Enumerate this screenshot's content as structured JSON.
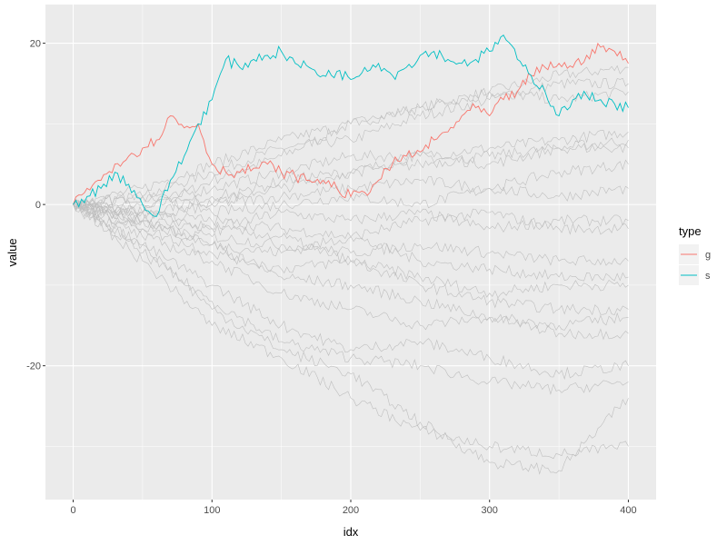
{
  "chart_data": {
    "type": "line",
    "title": "",
    "xlabel": "idx",
    "ylabel": "value",
    "xlim": [
      -20,
      420
    ],
    "ylim": [
      -36.6,
      24.8
    ],
    "x_ticks": [
      0,
      100,
      200,
      300,
      400
    ],
    "y_ticks": [
      -20,
      0,
      20
    ],
    "grid": true,
    "legend": {
      "title": "type",
      "placement": "right",
      "entries": [
        {
          "label": "g",
          "color": "#F8766D"
        },
        {
          "label": "s",
          "color": "#00BFC4"
        }
      ]
    },
    "highlight_series": [
      {
        "name": "g",
        "color": "#F8766D",
        "x_step": 10,
        "values": [
          0,
          2,
          3,
          5,
          6,
          7,
          8,
          11,
          9.5,
          10,
          5,
          4,
          4,
          4.5,
          5,
          4,
          3.5,
          3,
          3,
          2,
          1,
          1.5,
          3,
          5,
          6,
          6.5,
          8,
          9,
          11,
          12,
          11,
          13,
          14,
          16,
          17,
          17.5,
          17,
          18.5,
          19.5,
          19,
          17.5
        ]
      },
      {
        "name": "s",
        "color": "#00BFC4",
        "x_step": 10,
        "values": [
          0,
          1,
          2,
          4,
          2.5,
          0,
          -1.5,
          3,
          6,
          10,
          13,
          18,
          17,
          18,
          18.5,
          19,
          17.5,
          17,
          16,
          16.5,
          15.5,
          17,
          17.5,
          16,
          17,
          18.5,
          19,
          18,
          17.5,
          18,
          19,
          21,
          18,
          16,
          14,
          11,
          13,
          13.5,
          13,
          12.5,
          12
        ]
      }
    ],
    "background_series_color": "#BEBEBE",
    "background_series_x_step": 50,
    "background_series": [
      [
        0,
        -1,
        3,
        6,
        10,
        12,
        14,
        16,
        17
      ],
      [
        0,
        1,
        4,
        7,
        8,
        11,
        13,
        15,
        15
      ],
      [
        0,
        2,
        5,
        8,
        10,
        12,
        14,
        13,
        14
      ],
      [
        0,
        0,
        2,
        4,
        6,
        6,
        7,
        8,
        9
      ],
      [
        0,
        -1,
        1,
        2,
        4,
        6,
        5,
        7,
        8
      ],
      [
        0,
        1,
        0,
        3,
        4,
        5,
        6,
        7,
        7
      ],
      [
        0,
        -2,
        0,
        1,
        2,
        3,
        2,
        4,
        5
      ],
      [
        0,
        1,
        -1,
        0,
        1,
        0,
        2,
        1,
        2
      ],
      [
        0,
        -2,
        -3,
        -1,
        -2,
        -1,
        -3,
        -2,
        -2
      ],
      [
        0,
        -1,
        -2,
        -3,
        -4,
        -2,
        -1,
        -3,
        -3
      ],
      [
        0,
        -3,
        -4,
        -5,
        -6,
        -5,
        -6,
        -7,
        -7
      ],
      [
        0,
        -2,
        -5,
        -6,
        -4,
        -7,
        -8,
        -9,
        -9
      ],
      [
        0,
        -1,
        -3,
        -4,
        -7,
        -9,
        -11,
        -10,
        -10
      ],
      [
        0,
        -3,
        -6,
        -8,
        -7,
        -10,
        -12,
        -13,
        -13
      ],
      [
        0,
        -2,
        -5,
        -9,
        -10,
        -12,
        -14,
        -15,
        -14
      ],
      [
        0,
        -4,
        -7,
        -11,
        -13,
        -15,
        -14,
        -16,
        -16
      ],
      [
        0,
        -5,
        -10,
        -15,
        -18,
        -17,
        -19,
        -21,
        -20
      ],
      [
        0,
        -6,
        -12,
        -17,
        -19,
        -20,
        -22,
        -23,
        -22
      ],
      [
        0,
        -7,
        -15,
        -19,
        -24,
        -28,
        -30,
        -31,
        -30
      ],
      [
        0,
        -5,
        -13,
        -18,
        -21,
        -27,
        -32,
        -33,
        -24
      ]
    ]
  }
}
